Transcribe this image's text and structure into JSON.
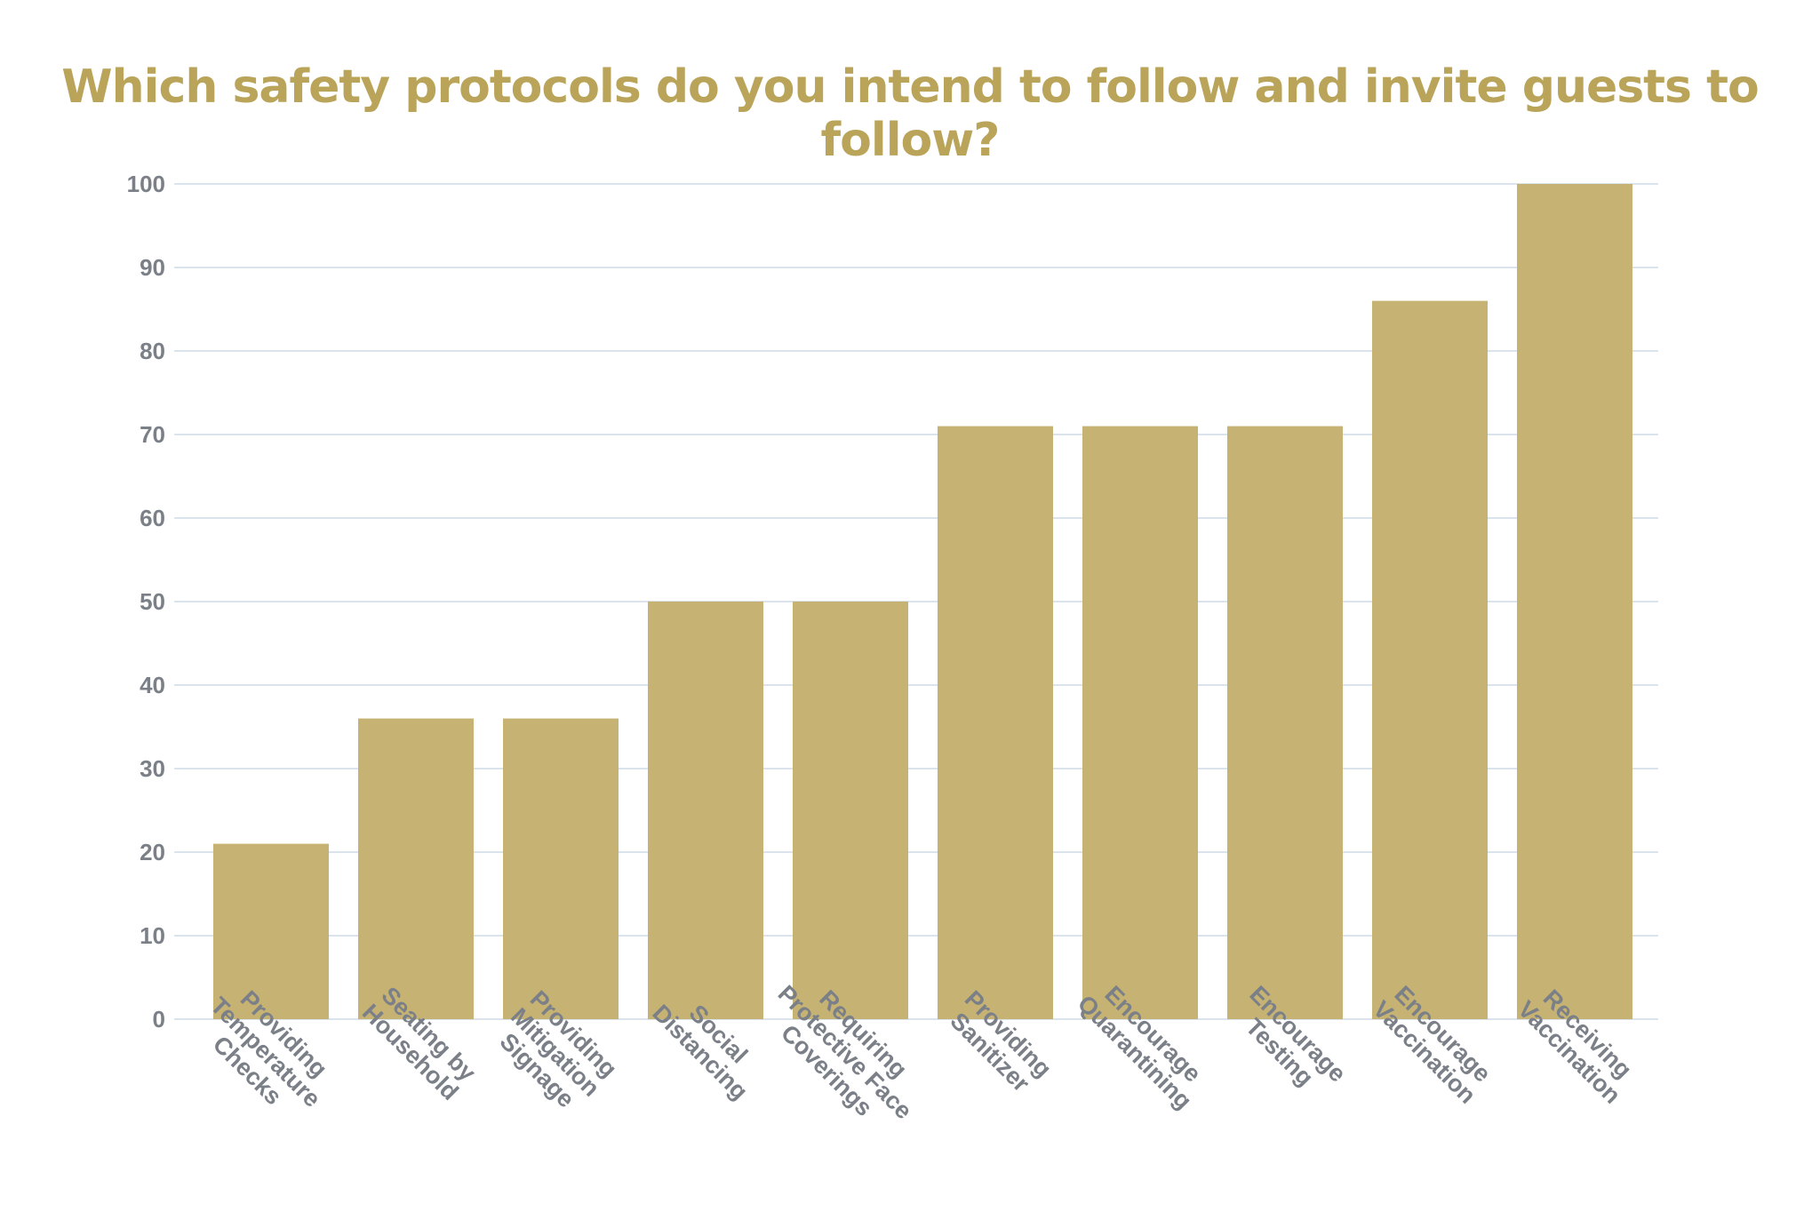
{
  "chart_data": {
    "type": "bar",
    "title": "Which safety protocols do you intend to follow and invite guests to follow?",
    "categories": [
      [
        "Providing",
        "Temperature",
        "Checks"
      ],
      [
        "Seating by",
        "Household"
      ],
      [
        "Providing",
        "Mitigation",
        "Signage"
      ],
      [
        "Social",
        "Distancing"
      ],
      [
        "Requiring",
        "Protective Face",
        "Coverings"
      ],
      [
        "Providing",
        "Sanitizer"
      ],
      [
        "Encourage",
        "Quarantining"
      ],
      [
        "Encourage",
        "Testing"
      ],
      [
        "Encourage",
        "Vaccination"
      ],
      [
        "Receiving",
        "Vaccination"
      ]
    ],
    "values": [
      21,
      36,
      36,
      50,
      50,
      71,
      71,
      71,
      86,
      100
    ],
    "ylim": [
      0,
      100
    ],
    "yticks": [
      "0",
      "10",
      "20",
      "30",
      "40",
      "50",
      "60",
      "70",
      "80",
      "90",
      "100"
    ],
    "grid": true,
    "bar_color": "#c6b272",
    "title_color": "#b9a45a",
    "grid_color": "#dbe4ec"
  }
}
